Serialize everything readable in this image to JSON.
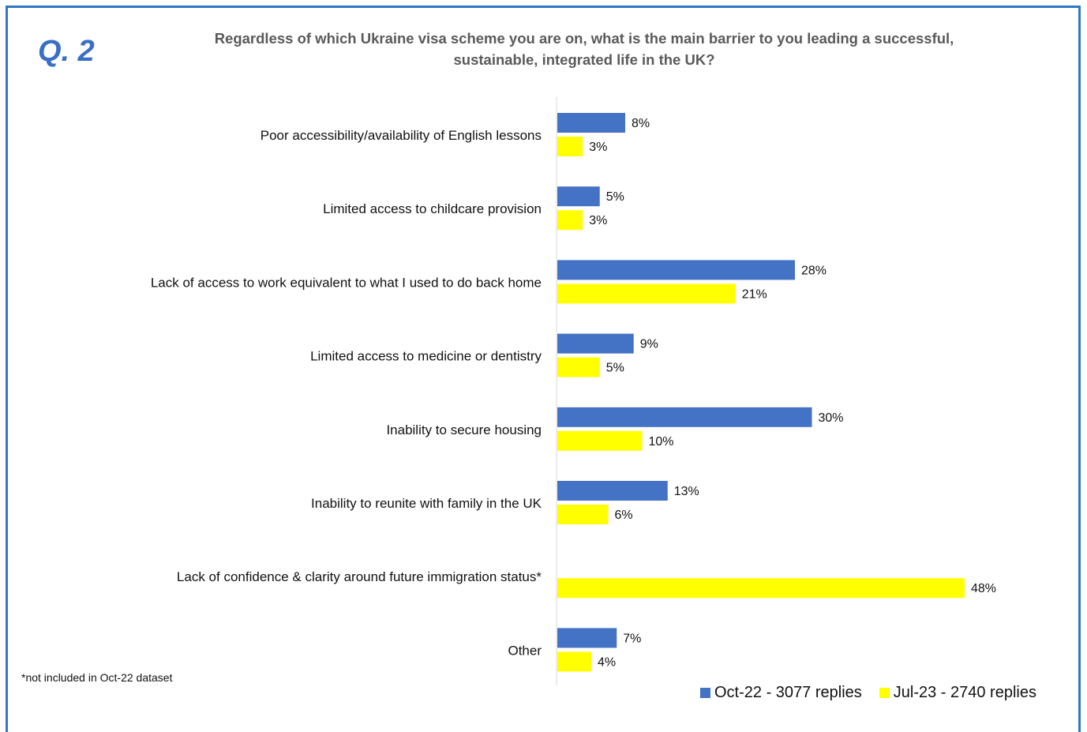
{
  "header": {
    "question_label": "Q. 2",
    "title_line1": "Regardless of which Ukraine visa scheme you are on, what is the main barrier to you leading a successful,",
    "title_line2": "sustainable, integrated life in the UK?"
  },
  "footnote": "*not included in Oct-22 dataset",
  "colors": {
    "oct22": "#4472c4",
    "jul23": "#ffff00",
    "frame": "#2f77c6",
    "axis": "#d9d9d9"
  },
  "chart_data": {
    "type": "bar",
    "orientation": "horizontal",
    "categories": [
      "Poor accessibility/availability of English lessons",
      "Limited access to childcare provision",
      "Lack of access to work equivalent to what I used to do back home",
      "Limited access to medicine or dentistry",
      "Inability to secure housing",
      "Inability to reunite with family in the UK",
      "Lack of confidence & clarity around future immigration status*",
      "Other"
    ],
    "series": [
      {
        "name": "Oct-22 - 3077 replies",
        "values": [
          8,
          5,
          28,
          9,
          30,
          13,
          null,
          7
        ],
        "labels": [
          "8%",
          "5%",
          "28%",
          "9%",
          "30%",
          "13%",
          "",
          "7%"
        ]
      },
      {
        "name": "Jul-23 - 2740 replies",
        "values": [
          3,
          3,
          21,
          5,
          10,
          6,
          48,
          4
        ],
        "labels": [
          "3%",
          "3%",
          "21%",
          "5%",
          "10%",
          "6%",
          "48%",
          "4%"
        ]
      }
    ],
    "unit": "%",
    "xlim": [
      0,
      50
    ],
    "legend_position": "bottom-right",
    "grid": false
  }
}
